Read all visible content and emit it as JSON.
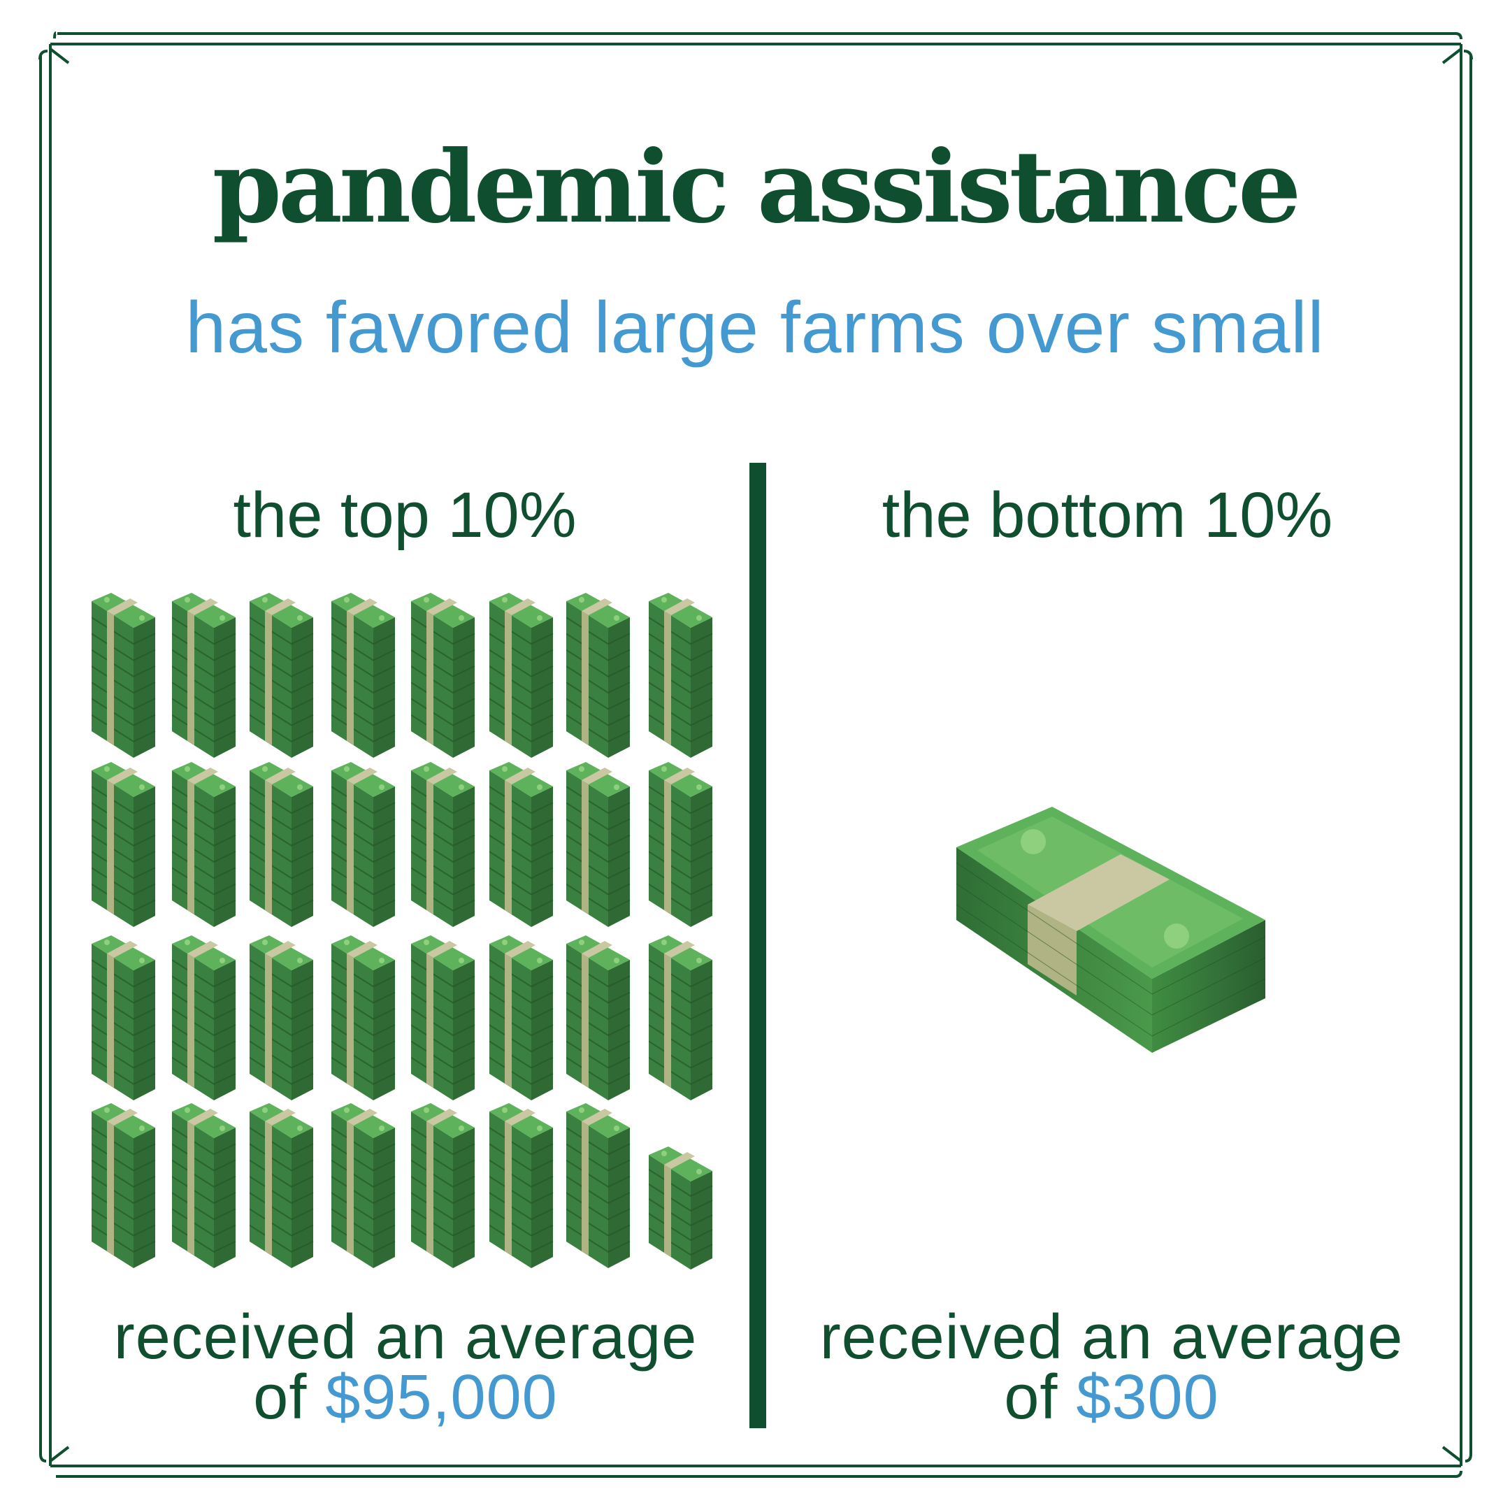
{
  "title": "pandemic assistance",
  "subtitle": "has favored large farms over small",
  "left": {
    "heading": "the top 10%",
    "caption_line1": "received an average",
    "caption_prefix": "of",
    "amount": "$95,000",
    "icon": "money-stack-icon"
  },
  "right": {
    "heading": "the bottom 10%",
    "caption_line1": "received an average",
    "caption_prefix": "of",
    "amount": "$300",
    "icon": "money-bundle-icon"
  },
  "colors": {
    "dark_green": "#0f4f2f",
    "blue": "#4499d0",
    "money_green": "#4a9a4a",
    "band": "#c9c8a3"
  }
}
